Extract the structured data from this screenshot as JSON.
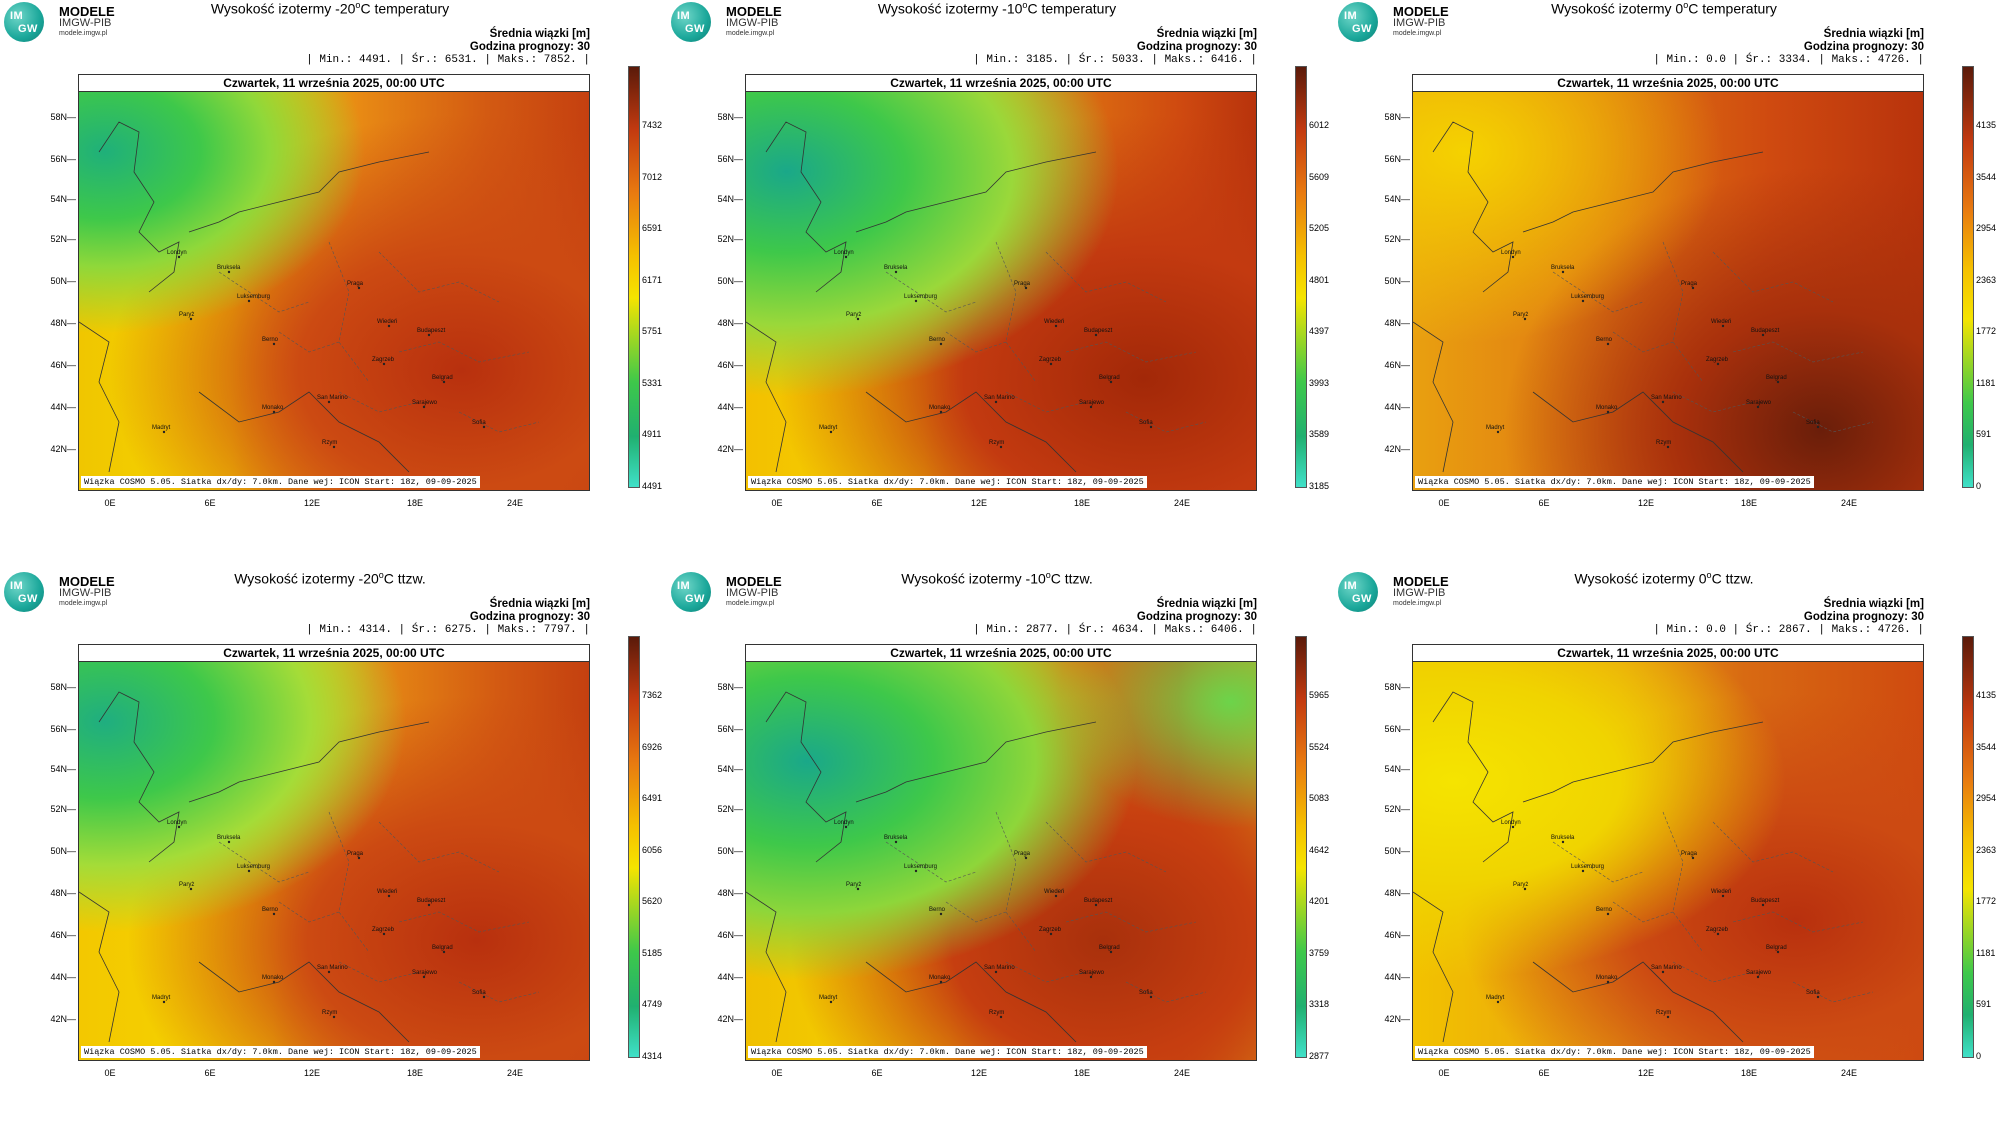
{
  "logo": {
    "mark_top": "IM",
    "mark_bottom": "GW",
    "line1": "MODELE",
    "line2": "IMGW-PIB",
    "line3": "modele.imgw.pl"
  },
  "common": {
    "avg_label": "Średnia wiązki [m]",
    "forecast_label": "Godzina prognozy: 30",
    "date": "Czwartek, 11 września 2025, 00:00 UTC",
    "footer": "Wiązka COSMO 5.05. Siatka dx/dy: 7.0km. Dane wej: ICON Start: 18z, 09-09-2025",
    "lat_labels": [
      "58N",
      "56N",
      "54N",
      "52N",
      "50N",
      "48N",
      "46N",
      "44N",
      "42N"
    ],
    "lon_labels": [
      "0E",
      "6E",
      "12E",
      "18E",
      "24E"
    ],
    "cities": [
      "Londyn",
      "Bruksela",
      "Luksemburg",
      "Paryż",
      "Praga",
      "Wiedeń",
      "Budapeszt",
      "Berno",
      "Zagrzeb",
      "Belgrad",
      "San Marino",
      "Sarajewo",
      "Monako",
      "Madryt",
      "Sofia",
      "Rzym"
    ]
  },
  "panels": [
    {
      "title_pre": "Wysokość izotermy -20",
      "title_post": "C temperatury",
      "stats": "| Min.:   4491. | Śr.:   6531. | Maks.:   7852. |",
      "ticks": [
        "7432",
        "7012",
        "6591",
        "6171",
        "5751",
        "5331",
        "4911",
        "4491"
      ]
    },
    {
      "title_pre": "Wysokość izotermy -10",
      "title_post": "C temperatury",
      "stats": "| Min.:   3185. | Śr.:   5033. | Maks.:   6416. |",
      "ticks": [
        "6012",
        "5609",
        "5205",
        "4801",
        "4397",
        "3993",
        "3589",
        "3185"
      ]
    },
    {
      "title_pre": "Wysokość izotermy 0",
      "title_post": "C temperatury",
      "stats": "| Min.:    0.0 | Śr.:   3334. | Maks.:   4726. |",
      "ticks": [
        "4135",
        "3544",
        "2954",
        "2363",
        "1772",
        "1181",
        "591",
        "0"
      ]
    },
    {
      "title_pre": "Wysokość izotermy -20",
      "title_post": "C ttzw.",
      "stats": "| Min.:   4314. | Śr.:   6275. | Maks.:   7797. |",
      "ticks": [
        "7362",
        "6926",
        "6491",
        "6056",
        "5620",
        "5185",
        "4749",
        "4314"
      ]
    },
    {
      "title_pre": "Wysokość izotermy -10",
      "title_post": "C ttzw.",
      "stats": "| Min.:   2877. | Śr.:   4634. | Maks.:   6406. |",
      "ticks": [
        "5965",
        "5524",
        "5083",
        "4642",
        "4201",
        "3759",
        "3318",
        "2877"
      ]
    },
    {
      "title_pre": "Wysokość izotermy 0",
      "title_post": "C ttzw.",
      "stats": "| Min.:    0.0 | Śr.:   2867. | Maks.:   4726. |",
      "ticks": [
        "4135",
        "3544",
        "2954",
        "2363",
        "1772",
        "1181",
        "591",
        "0"
      ]
    }
  ],
  "colors": {
    "low": "#40e0c8",
    "green": "#3ec84a",
    "yellow": "#f5e400",
    "orange": "#e87a10",
    "red": "#c33a10",
    "dark": "#5a1a0a"
  }
}
